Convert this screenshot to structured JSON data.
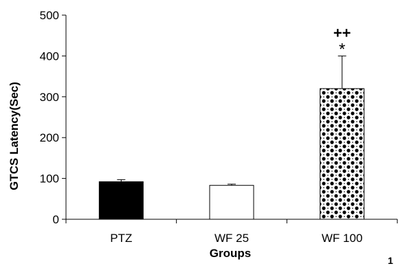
{
  "chart_data": {
    "type": "bar",
    "title": "",
    "xlabel": "Groups",
    "ylabel": "GTCS Latency(Sec)",
    "categories": [
      "PTZ",
      "WF 25",
      "WF 100"
    ],
    "values": [
      92,
      83,
      320
    ],
    "errors": [
      5,
      3,
      80
    ],
    "fills": [
      "solid-black",
      "white",
      "dotted-pattern"
    ],
    "ylim": [
      0,
      500
    ],
    "yticks": [
      "0",
      "100",
      "200",
      "300",
      "400",
      "500"
    ],
    "grid": false,
    "legend": "none",
    "annotations": [
      {
        "category": "WF 100",
        "text": "++"
      },
      {
        "category": "WF 100",
        "text": "*"
      }
    ]
  },
  "page_number": "1",
  "colors": {
    "bar_black": "#000000",
    "bar_white": "#ffffff",
    "pattern_dot": "#000000",
    "pattern_bg": "#ffffff",
    "axis": "#000000"
  }
}
